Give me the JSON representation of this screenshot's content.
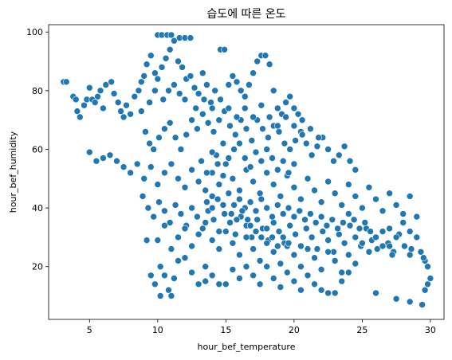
{
  "chart_data": {
    "type": "scatter",
    "title": "습도에 따른 온도",
    "xlabel": "hour_bef_temperature",
    "ylabel": "hour_bef_humidity",
    "xlim": [
      2.0,
      31.0
    ],
    "ylim": [
      2.0,
      102.5
    ],
    "xticks": [
      5,
      10,
      15,
      20,
      25,
      30
    ],
    "yticks": [
      20,
      40,
      60,
      80,
      100
    ],
    "grid": false,
    "colors": {
      "point": "#1f77b4"
    },
    "points": [
      [
        3.1,
        83
      ],
      [
        3.3,
        83
      ],
      [
        3.8,
        78
      ],
      [
        4.0,
        77
      ],
      [
        4.1,
        73
      ],
      [
        4.3,
        71
      ],
      [
        4.6,
        75
      ],
      [
        4.8,
        77
      ],
      [
        5.0,
        81
      ],
      [
        5.2,
        77
      ],
      [
        5.4,
        76
      ],
      [
        5.6,
        78
      ],
      [
        5.8,
        80
      ],
      [
        6.0,
        74
      ],
      [
        6.2,
        82
      ],
      [
        6.6,
        83
      ],
      [
        6.8,
        79
      ],
      [
        7.1,
        76
      ],
      [
        7.3,
        73
      ],
      [
        7.5,
        71
      ],
      [
        7.7,
        75
      ],
      [
        8.0,
        72
      ],
      [
        8.3,
        78
      ],
      [
        8.6,
        80
      ],
      [
        8.8,
        83
      ],
      [
        9.0,
        85
      ],
      [
        9.2,
        89
      ],
      [
        9.5,
        92
      ],
      [
        9.8,
        86
      ],
      [
        10.0,
        84
      ],
      [
        10.3,
        88
      ],
      [
        10.6,
        91
      ],
      [
        10.9,
        94
      ],
      [
        11.2,
        97
      ],
      [
        11.5,
        90
      ],
      [
        11.8,
        88
      ],
      [
        12.1,
        84
      ],
      [
        12.4,
        85
      ],
      [
        12.7,
        81
      ],
      [
        13.0,
        79
      ],
      [
        13.3,
        86
      ],
      [
        13.6,
        82
      ],
      [
        13.9,
        76
      ],
      [
        14.2,
        80
      ],
      [
        14.6,
        94
      ],
      [
        14.9,
        94
      ],
      [
        15.2,
        82
      ],
      [
        15.5,
        85
      ],
      [
        15.8,
        83
      ],
      [
        16.1,
        80
      ],
      [
        16.4,
        78
      ],
      [
        16.7,
        82
      ],
      [
        17.0,
        86
      ],
      [
        17.3,
        90
      ],
      [
        17.6,
        92
      ],
      [
        17.9,
        92
      ],
      [
        18.2,
        89
      ],
      [
        18.5,
        80
      ],
      [
        18.8,
        74
      ],
      [
        19.1,
        72
      ],
      [
        19.4,
        76
      ],
      [
        19.7,
        78
      ],
      [
        20.0,
        74
      ],
      [
        20.3,
        72
      ],
      [
        20.6,
        70
      ],
      [
        10.0,
        99
      ],
      [
        10.3,
        99
      ],
      [
        10.7,
        99
      ],
      [
        11.0,
        99
      ],
      [
        11.6,
        98
      ],
      [
        12.0,
        98
      ],
      [
        12.4,
        98
      ],
      [
        9.1,
        66
      ],
      [
        9.4,
        62
      ],
      [
        9.7,
        60
      ],
      [
        10.1,
        64
      ],
      [
        10.5,
        67
      ],
      [
        10.9,
        69
      ],
      [
        11.3,
        64
      ],
      [
        11.7,
        60
      ],
      [
        12.1,
        65
      ],
      [
        12.5,
        70
      ],
      [
        12.9,
        67
      ],
      [
        13.3,
        72
      ],
      [
        13.7,
        69
      ],
      [
        14.1,
        66
      ],
      [
        14.5,
        70
      ],
      [
        14.9,
        73
      ],
      [
        15.3,
        68
      ],
      [
        15.7,
        65
      ],
      [
        16.1,
        70
      ],
      [
        16.5,
        67
      ],
      [
        16.9,
        63
      ],
      [
        17.3,
        70
      ],
      [
        17.7,
        67
      ],
      [
        18.1,
        64
      ],
      [
        18.5,
        68
      ],
      [
        18.9,
        66
      ],
      [
        19.3,
        62
      ],
      [
        19.7,
        60
      ],
      [
        20.1,
        63
      ],
      [
        20.5,
        66
      ],
      [
        20.9,
        62
      ],
      [
        21.3,
        58
      ],
      [
        21.7,
        61
      ],
      [
        22.1,
        64
      ],
      [
        22.5,
        60
      ],
      [
        22.9,
        56
      ],
      [
        23.3,
        58
      ],
      [
        23.7,
        61
      ],
      [
        24.1,
        56
      ],
      [
        24.5,
        53
      ],
      [
        5.0,
        59
      ],
      [
        5.5,
        56
      ],
      [
        6.0,
        57
      ],
      [
        6.5,
        58
      ],
      [
        7.0,
        56
      ],
      [
        7.5,
        54
      ],
      [
        8.0,
        52
      ],
      [
        8.5,
        55
      ],
      [
        9.0,
        50
      ],
      [
        9.5,
        54
      ],
      [
        10.0,
        48
      ],
      [
        10.5,
        52
      ],
      [
        11.0,
        55
      ],
      [
        11.5,
        50
      ],
      [
        12.0,
        47
      ],
      [
        12.5,
        53
      ],
      [
        13.0,
        49
      ],
      [
        13.5,
        46
      ],
      [
        14.0,
        52
      ],
      [
        14.5,
        48
      ],
      [
        15.0,
        55
      ],
      [
        15.5,
        50
      ],
      [
        16.0,
        46
      ],
      [
        16.5,
        53
      ],
      [
        17.0,
        49
      ],
      [
        17.5,
        45
      ],
      [
        18.0,
        52
      ],
      [
        18.5,
        48
      ],
      [
        19.0,
        44
      ],
      [
        19.5,
        51
      ],
      [
        20.0,
        47
      ],
      [
        20.5,
        43
      ],
      [
        21.0,
        50
      ],
      [
        21.5,
        46
      ],
      [
        22.0,
        42
      ],
      [
        22.5,
        49
      ],
      [
        23.0,
        45
      ],
      [
        23.5,
        41
      ],
      [
        24.0,
        48
      ],
      [
        24.5,
        44
      ],
      [
        25.0,
        40
      ],
      [
        25.5,
        47
      ],
      [
        26.0,
        43
      ],
      [
        26.5,
        39
      ],
      [
        27.0,
        45
      ],
      [
        27.5,
        41
      ],
      [
        28.0,
        38
      ],
      [
        28.5,
        44
      ],
      [
        8.9,
        44
      ],
      [
        9.3,
        40
      ],
      [
        9.7,
        37
      ],
      [
        10.1,
        42
      ],
      [
        10.5,
        39
      ],
      [
        10.9,
        35
      ],
      [
        11.3,
        41
      ],
      [
        11.7,
        38
      ],
      [
        12.1,
        34
      ],
      [
        12.5,
        40
      ],
      [
        12.9,
        37
      ],
      [
        13.3,
        33
      ],
      [
        13.7,
        39
      ],
      [
        14.1,
        36
      ],
      [
        14.5,
        32
      ],
      [
        14.9,
        38
      ],
      [
        15.3,
        35
      ],
      [
        15.7,
        31
      ],
      [
        16.1,
        37
      ],
      [
        16.5,
        34
      ],
      [
        16.9,
        30
      ],
      [
        17.3,
        36
      ],
      [
        17.7,
        33
      ],
      [
        18.1,
        29
      ],
      [
        18.5,
        35
      ],
      [
        18.9,
        32
      ],
      [
        19.3,
        28
      ],
      [
        19.7,
        34
      ],
      [
        20.1,
        31
      ],
      [
        20.5,
        27
      ],
      [
        20.9,
        33
      ],
      [
        21.3,
        30
      ],
      [
        21.7,
        26
      ],
      [
        22.1,
        32
      ],
      [
        22.5,
        29
      ],
      [
        22.9,
        25
      ],
      [
        23.3,
        31
      ],
      [
        23.7,
        28
      ],
      [
        24.1,
        34
      ],
      [
        24.5,
        30
      ],
      [
        24.9,
        27
      ],
      [
        25.3,
        33
      ],
      [
        25.7,
        29
      ],
      [
        26.1,
        26
      ],
      [
        26.5,
        32
      ],
      [
        26.9,
        28
      ],
      [
        27.3,
        25
      ],
      [
        27.7,
        31
      ],
      [
        28.1,
        27
      ],
      [
        28.5,
        24
      ],
      [
        29.0,
        30
      ],
      [
        29.3,
        25
      ],
      [
        29.6,
        22
      ],
      [
        9.5,
        17
      ],
      [
        9.8,
        14
      ],
      [
        10.2,
        20
      ],
      [
        10.5,
        17
      ],
      [
        10.8,
        12
      ],
      [
        11.2,
        16
      ],
      [
        11.5,
        22
      ],
      [
        12.0,
        23
      ],
      [
        12.5,
        18
      ],
      [
        13.0,
        14
      ],
      [
        13.5,
        20
      ],
      [
        14.0,
        17
      ],
      [
        14.5,
        14
      ],
      [
        15.0,
        14
      ],
      [
        15.5,
        19
      ],
      [
        16.0,
        16
      ],
      [
        16.5,
        20
      ],
      [
        17.0,
        17
      ],
      [
        17.5,
        14
      ],
      [
        18.0,
        20
      ],
      [
        18.5,
        16
      ],
      [
        19.0,
        13
      ],
      [
        19.5,
        18
      ],
      [
        20.0,
        15
      ],
      [
        20.5,
        12
      ],
      [
        21.0,
        17
      ],
      [
        21.5,
        14
      ],
      [
        22.0,
        12
      ],
      [
        22.5,
        11
      ],
      [
        23.0,
        11
      ],
      [
        23.5,
        15
      ],
      [
        24.0,
        18
      ],
      [
        10.2,
        10
      ],
      [
        11.0,
        10
      ],
      [
        12.0,
        23
      ],
      [
        13.5,
        15
      ],
      [
        26.0,
        11
      ],
      [
        27.5,
        9
      ],
      [
        28.5,
        8
      ],
      [
        29.4,
        7
      ],
      [
        29.6,
        12
      ],
      [
        29.8,
        14
      ],
      [
        30.0,
        16
      ],
      [
        29.8,
        20
      ],
      [
        29.5,
        23
      ],
      [
        28.6,
        26
      ],
      [
        27.2,
        24
      ],
      [
        27.0,
        27
      ],
      [
        9.2,
        29
      ],
      [
        10.0,
        29
      ],
      [
        10.5,
        34
      ],
      [
        11.0,
        26
      ],
      [
        11.5,
        30
      ],
      [
        12.0,
        33
      ],
      [
        12.5,
        27
      ],
      [
        13.0,
        31
      ],
      [
        13.5,
        35
      ],
      [
        14.0,
        29
      ],
      [
        14.5,
        26
      ],
      [
        15.0,
        32
      ],
      [
        15.5,
        28
      ],
      [
        16.0,
        24
      ],
      [
        16.5,
        30
      ],
      [
        17.0,
        26
      ],
      [
        17.5,
        22
      ],
      [
        18.0,
        28
      ],
      [
        18.5,
        25
      ],
      [
        19.0,
        21
      ],
      [
        19.5,
        27
      ],
      [
        20.0,
        24
      ],
      [
        20.5,
        20
      ],
      [
        21.0,
        26
      ],
      [
        21.5,
        23
      ],
      [
        22.0,
        19
      ],
      [
        22.5,
        25
      ],
      [
        23.0,
        22
      ],
      [
        23.5,
        18
      ],
      [
        24.0,
        24
      ],
      [
        24.5,
        21
      ],
      [
        25.0,
        28
      ],
      [
        25.5,
        25
      ],
      [
        26.0,
        30
      ],
      [
        26.5,
        27
      ],
      [
        27.0,
        33
      ],
      [
        27.5,
        30
      ],
      [
        28.0,
        35
      ],
      [
        28.5,
        32
      ],
      [
        29.0,
        37
      ],
      [
        14.0,
        44
      ],
      [
        14.3,
        58
      ],
      [
        14.8,
        62
      ],
      [
        15.2,
        57
      ],
      [
        15.6,
        60
      ],
      [
        16.0,
        62
      ],
      [
        16.4,
        57
      ],
      [
        16.8,
        54
      ],
      [
        17.2,
        59
      ],
      [
        17.6,
        56
      ],
      [
        18.0,
        60
      ],
      [
        18.4,
        57
      ],
      [
        18.8,
        53
      ],
      [
        19.2,
        56
      ],
      [
        19.6,
        52
      ],
      [
        20.0,
        55
      ],
      [
        13.2,
        56
      ],
      [
        13.6,
        52
      ],
      [
        14.0,
        59
      ],
      [
        14.4,
        55
      ],
      [
        14.8,
        51
      ],
      [
        15.2,
        45
      ],
      [
        15.6,
        41
      ],
      [
        16.0,
        43
      ],
      [
        16.4,
        40
      ],
      [
        16.8,
        42
      ],
      [
        17.2,
        39
      ],
      [
        17.6,
        43
      ],
      [
        18.0,
        40
      ],
      [
        18.4,
        37
      ],
      [
        18.8,
        41
      ],
      [
        19.2,
        38
      ],
      [
        19.6,
        40
      ],
      [
        20.0,
        37
      ],
      [
        20.4,
        39
      ],
      [
        20.8,
        36
      ],
      [
        21.2,
        38
      ],
      [
        21.6,
        35
      ],
      [
        22.0,
        37
      ],
      [
        22.4,
        34
      ],
      [
        22.8,
        36
      ],
      [
        23.2,
        33
      ],
      [
        23.6,
        35
      ],
      [
        24.0,
        38
      ],
      [
        24.4,
        36
      ],
      [
        24.8,
        33
      ],
      [
        25.2,
        35
      ],
      [
        25.6,
        32
      ],
      [
        12.8,
        74
      ],
      [
        13.4,
        77
      ],
      [
        14.0,
        74
      ],
      [
        14.6,
        77
      ],
      [
        15.2,
        74
      ],
      [
        15.8,
        71
      ],
      [
        16.4,
        74
      ],
      [
        17.0,
        71
      ],
      [
        17.6,
        75
      ],
      [
        18.2,
        71
      ],
      [
        18.8,
        68
      ],
      [
        19.4,
        71
      ],
      [
        20.0,
        68
      ],
      [
        20.6,
        65
      ],
      [
        21.2,
        67
      ],
      [
        21.8,
        64
      ],
      [
        10.4,
        77
      ],
      [
        10.8,
        80
      ],
      [
        11.2,
        82
      ],
      [
        11.6,
        79
      ],
      [
        12.0,
        77
      ],
      [
        9.8,
        80
      ],
      [
        9.4,
        76
      ],
      [
        8.8,
        73
      ],
      [
        16.8,
        34
      ],
      [
        17.2,
        32
      ],
      [
        17.6,
        30
      ],
      [
        18.0,
        33
      ],
      [
        18.4,
        30
      ],
      [
        18.8,
        27
      ],
      [
        19.2,
        30
      ],
      [
        19.6,
        28
      ],
      [
        15.4,
        38
      ],
      [
        15.8,
        36
      ],
      [
        16.2,
        39
      ],
      [
        16.6,
        36
      ],
      [
        13.6,
        42
      ],
      [
        14.0,
        40
      ],
      [
        14.4,
        43
      ],
      [
        14.8,
        41
      ]
    ]
  }
}
